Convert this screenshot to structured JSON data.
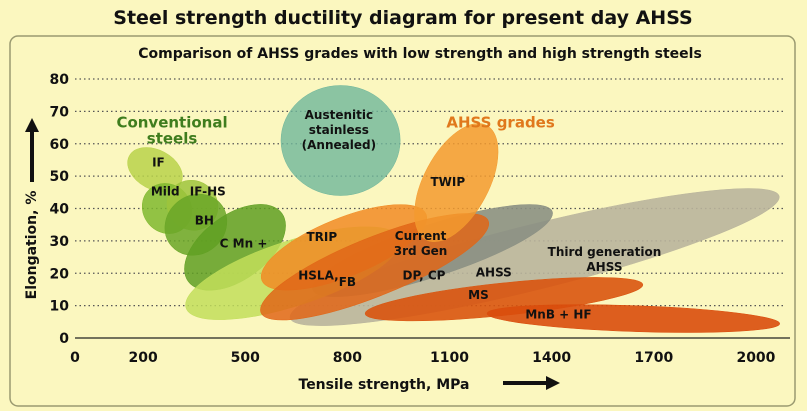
{
  "title": "Steel strength ductility diagram for present day AHSS",
  "subtitle": "Comparison of AHSS grades with low strength and high strength steels",
  "chart_data": {
    "type": "scatter",
    "title": "Steel strength ductility diagram for present day AHSS",
    "subtitle": "Comparison of AHSS grades with low strength and high strength steels",
    "xlabel": "Tensile strength, MPa",
    "ylabel": "Elongation, %",
    "xlim": [
      0,
      2100
    ],
    "ylim": [
      0,
      80
    ],
    "x_ticks": [
      "0",
      "200",
      "500",
      "800",
      "1100",
      "1400",
      "1700",
      "2000"
    ],
    "y_ticks": [
      "0",
      "10",
      "20",
      "30",
      "40",
      "50",
      "60",
      "70",
      "80"
    ],
    "grid": "horizontal-dotted",
    "group_labels": [
      {
        "text_lines": [
          "Conventional",
          "steels"
        ],
        "color": "#3f7d1e",
        "x": 285,
        "y": 65
      },
      {
        "text_lines": [
          "AHSS  grades"
        ],
        "color": "#e0781c",
        "x": 1250,
        "y": 65
      }
    ],
    "regions": [
      {
        "label_lines": [
          "Third generation",
          "AHSS"
        ],
        "color": "#b9b49c",
        "opacity": 0.9,
        "cx": 1350,
        "cy": 25,
        "rx": 740,
        "ry": 10,
        "angle": -14,
        "label_x": 1555,
        "label_y": 23
      },
      {
        "label_lines": [
          "Current",
          "3rd Gen"
        ],
        "color": "#8b9083",
        "opacity": 0.9,
        "cx": 1050,
        "cy": 27,
        "rx": 370,
        "ry": 8,
        "angle": -18,
        "label_x": 1015,
        "label_y": 28
      },
      {
        "label_lines": [
          "IF"
        ],
        "color": "#b8d24a",
        "opacity": 0.85,
        "cx": 235,
        "cy": 52,
        "rx": 58,
        "ry": 9,
        "angle": -62,
        "label_x": 245,
        "label_y": 53
      },
      {
        "label_lines": [
          "Mild"
        ],
        "color": "#7fb82e",
        "opacity": 0.85,
        "cx": 270,
        "cy": 40,
        "rx": 70,
        "ry": 8,
        "angle": -40,
        "label_x": 265,
        "label_y": 44
      },
      {
        "label_lines": [
          "IF-HS"
        ],
        "color": "#9ec43c",
        "opacity": 0.85,
        "cx": 345,
        "cy": 41,
        "rx": 72,
        "ry": 8,
        "angle": -55,
        "label_x": 390,
        "label_y": 44
      },
      {
        "label_lines": [
          "BH"
        ],
        "color": "#6aa627",
        "opacity": 0.85,
        "cx": 355,
        "cy": 35,
        "rx": 95,
        "ry": 9,
        "angle": -42,
        "label_x": 380,
        "label_y": 35
      },
      {
        "label_lines": [
          "C Mn +"
        ],
        "color": "#5f9f22",
        "opacity": 0.85,
        "cx": 470,
        "cy": 28,
        "rx": 170,
        "ry": 10,
        "angle": -36,
        "label_x": 495,
        "label_y": 28
      },
      {
        "label_lines": [
          "HSLA,"
        ],
        "color": "#c2de5a",
        "opacity": 0.85,
        "cx": 640,
        "cy": 20,
        "rx": 330,
        "ry": 10,
        "angle": -18,
        "label_x": 715,
        "label_y": 18
      },
      {
        "label_lines": [
          "TRIP"
        ],
        "color": "#f18b24",
        "opacity": 0.85,
        "cx": 790,
        "cy": 28,
        "rx": 260,
        "ry": 9,
        "angle": -22,
        "label_x": 725,
        "label_y": 30
      },
      {
        "label_lines": [
          "DP, CP"
        ],
        "color": "#e06617",
        "opacity": 0.85,
        "cx": 880,
        "cy": 22,
        "rx": 360,
        "ry": 9,
        "angle": -22,
        "label_x": 1025,
        "label_y": 18
      },
      {
        "label_lines": [
          "TWIP"
        ],
        "color": "#f39a2e",
        "opacity": 0.85,
        "cx": 1120,
        "cy": 48,
        "rx": 190,
        "ry": 10,
        "angle": -62,
        "label_x": 1095,
        "label_y": 47
      },
      {
        "label_lines": [
          "MS"
        ],
        "color": "#d9540e",
        "opacity": 0.9,
        "cx": 1260,
        "cy": 12,
        "rx": 410,
        "ry": 5,
        "angle": -6,
        "label_x": 1185,
        "label_y": 12
      },
      {
        "label_lines": [
          "MnB + HF"
        ],
        "color": "#d94c0c",
        "opacity": 0.9,
        "cx": 1640,
        "cy": 6,
        "rx": 430,
        "ry": 4,
        "angle": 2,
        "label_x": 1420,
        "label_y": 6
      },
      {
        "label_lines": [
          "Austenitic",
          "stainless",
          "(Annealed)"
        ],
        "color": "#6fb69b",
        "opacity": 0.8,
        "cx": 780,
        "cy": 61,
        "rx": 175,
        "ry": 17,
        "angle": 0,
        "label_x": 775,
        "label_y": 63
      }
    ],
    "extra_labels": [
      {
        "text": "FB",
        "x": 800,
        "y": 16
      },
      {
        "text": "AHSS",
        "x": 1230,
        "y": 19
      }
    ]
  }
}
